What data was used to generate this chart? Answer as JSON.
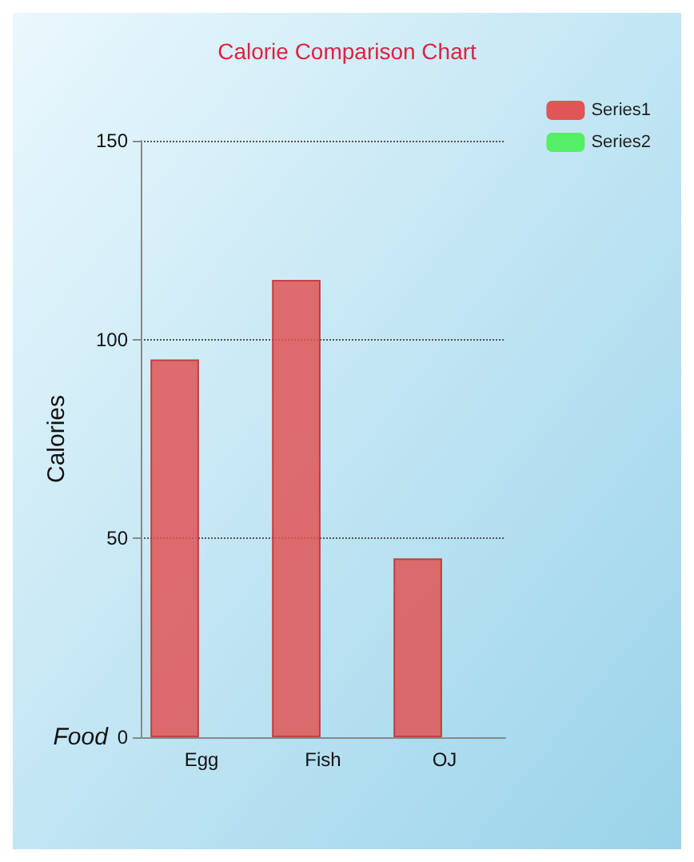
{
  "chart_data": {
    "type": "bar",
    "title": "Calorie Comparison Chart",
    "xlabel": "Food",
    "ylabel": "Calories",
    "categories": [
      "Egg",
      "Fish",
      "OJ"
    ],
    "series": [
      {
        "name": "Series1",
        "color": "#e05555",
        "values": [
          95,
          115,
          45
        ]
      },
      {
        "name": "Series2",
        "color": "#55ee66",
        "values": [
          null,
          null,
          null
        ]
      }
    ],
    "ylim": [
      0,
      150
    ],
    "yticks": [
      0,
      50,
      100,
      150
    ],
    "grid": "y",
    "legend": "top right"
  }
}
